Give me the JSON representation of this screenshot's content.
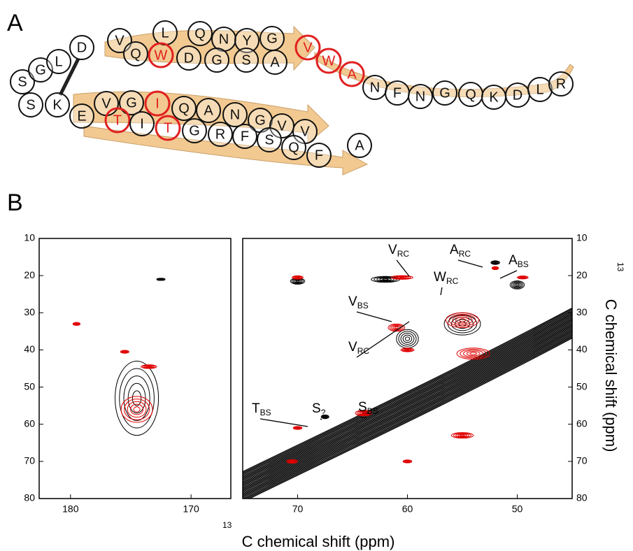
{
  "panel_a": {
    "label": "A",
    "residues": [
      {
        "letter": "S",
        "highlight": false
      },
      {
        "letter": "G",
        "highlight": false
      },
      {
        "letter": "L",
        "highlight": false
      },
      {
        "letter": "D",
        "highlight": false
      },
      {
        "letter": "V",
        "highlight": false
      },
      {
        "letter": "L",
        "highlight": false
      },
      {
        "letter": "Q",
        "highlight": false
      },
      {
        "letter": "N",
        "highlight": false
      },
      {
        "letter": "Y",
        "highlight": false
      },
      {
        "letter": "G",
        "highlight": false
      },
      {
        "letter": "Q",
        "highlight": false
      },
      {
        "letter": "W",
        "highlight": true
      },
      {
        "letter": "D",
        "highlight": false
      },
      {
        "letter": "G",
        "highlight": false
      },
      {
        "letter": "S",
        "highlight": false
      },
      {
        "letter": "A",
        "highlight": false
      },
      {
        "letter": "V",
        "highlight": true
      },
      {
        "letter": "W",
        "highlight": true
      },
      {
        "letter": "A",
        "highlight": true
      },
      {
        "letter": "N",
        "highlight": false
      },
      {
        "letter": "F",
        "highlight": false
      },
      {
        "letter": "N",
        "highlight": false
      },
      {
        "letter": "G",
        "highlight": false
      },
      {
        "letter": "Q",
        "highlight": false
      },
      {
        "letter": "K",
        "highlight": false
      },
      {
        "letter": "D",
        "highlight": false
      },
      {
        "letter": "L",
        "highlight": false
      },
      {
        "letter": "R",
        "highlight": false
      },
      {
        "letter": "S",
        "highlight": false
      },
      {
        "letter": "K",
        "highlight": false
      },
      {
        "letter": "E",
        "highlight": false
      },
      {
        "letter": "V",
        "highlight": false
      },
      {
        "letter": "G",
        "highlight": false
      },
      {
        "letter": "I",
        "highlight": true
      },
      {
        "letter": "Q",
        "highlight": false
      },
      {
        "letter": "A",
        "highlight": false
      },
      {
        "letter": "N",
        "highlight": false
      },
      {
        "letter": "G",
        "highlight": false
      },
      {
        "letter": "V",
        "highlight": false
      },
      {
        "letter": "V",
        "highlight": false
      },
      {
        "letter": "A",
        "highlight": false
      },
      {
        "letter": "T",
        "highlight": true
      },
      {
        "letter": "I",
        "highlight": false
      },
      {
        "letter": "T",
        "highlight": true
      },
      {
        "letter": "G",
        "highlight": false
      },
      {
        "letter": "R",
        "highlight": false
      },
      {
        "letter": "F",
        "highlight": false
      },
      {
        "letter": "S",
        "highlight": false
      },
      {
        "letter": "Q",
        "highlight": false
      },
      {
        "letter": "F",
        "highlight": false
      }
    ]
  },
  "panel_b": {
    "label": "B",
    "axis_label_sup": "13",
    "axis_label": "C chemical shift (ppm)",
    "left_plot": {
      "xlim": [
        182.6,
        166.7
      ],
      "xticks": [
        180,
        170
      ],
      "ylim": [
        10,
        80
      ],
      "yticks": [
        10,
        20,
        30,
        40,
        50,
        60,
        70,
        80
      ],
      "peaks": [
        {
          "x": 174.5,
          "y": 53,
          "wx": 3.6,
          "wy": 20,
          "color": "#000000"
        },
        {
          "x": 174.5,
          "y": 56,
          "wx": 2.6,
          "wy": 7,
          "color": "#e00000"
        },
        {
          "x": 179.5,
          "y": 33,
          "wx": 0.6,
          "wy": 0.8,
          "color": "#e00000"
        },
        {
          "x": 175.5,
          "y": 40.5,
          "wx": 0.7,
          "wy": 0.8,
          "color": "#e00000"
        },
        {
          "x": 173.5,
          "y": 44.5,
          "wx": 1.3,
          "wy": 1,
          "color": "#e00000"
        },
        {
          "x": 172.5,
          "y": 21,
          "wx": 0.7,
          "wy": 0.6,
          "color": "#000000"
        }
      ]
    },
    "right_plot": {
      "xlim": [
        75,
        45
      ],
      "xticks": [
        70,
        60,
        50
      ],
      "ylim": [
        10,
        80
      ],
      "yticks": [
        10,
        20,
        30,
        40,
        50,
        60,
        70,
        80
      ],
      "peaks": [
        {
          "x": 70,
          "y": 21.5,
          "wx": 1.3,
          "wy": 1.6,
          "color": "#000000"
        },
        {
          "x": 70,
          "y": 20.5,
          "wx": 1,
          "wy": 0.9,
          "color": "#e00000"
        },
        {
          "x": 62,
          "y": 21,
          "wx": 2.6,
          "wy": 1.6,
          "color": "#000000"
        },
        {
          "x": 60.5,
          "y": 20.5,
          "wx": 2,
          "wy": 1,
          "color": "#e00000"
        },
        {
          "x": 52,
          "y": 16.5,
          "wx": 0.8,
          "wy": 1,
          "color": "#000000"
        },
        {
          "x": 52,
          "y": 18,
          "wx": 0.6,
          "wy": 0.8,
          "color": "#e00000"
        },
        {
          "x": 50,
          "y": 22.5,
          "wx": 1.3,
          "wy": 2.2,
          "color": "#000000"
        },
        {
          "x": 49.5,
          "y": 20.5,
          "wx": 1,
          "wy": 0.8,
          "color": "#e00000"
        },
        {
          "x": 55,
          "y": 33,
          "wx": 3.3,
          "wy": 6,
          "color": "#000000"
        },
        {
          "x": 55,
          "y": 32,
          "wx": 3,
          "wy": 4,
          "color": "#e00000"
        },
        {
          "x": 54,
          "y": 41,
          "wx": 3,
          "wy": 3,
          "color": "#e00000"
        },
        {
          "x": 60,
          "y": 37,
          "wx": 2,
          "wy": 5,
          "color": "#000000"
        },
        {
          "x": 61,
          "y": 34,
          "wx": 1.5,
          "wy": 2,
          "color": "#e00000"
        },
        {
          "x": 60,
          "y": 40,
          "wx": 1.2,
          "wy": 1,
          "color": "#e00000"
        },
        {
          "x": 70.5,
          "y": 70,
          "wx": 1,
          "wy": 1,
          "color": "#e00000"
        },
        {
          "x": 60,
          "y": 70,
          "wx": 0.8,
          "wy": 0.8,
          "color": "#e00000"
        },
        {
          "x": 67.5,
          "y": 58,
          "wx": 0.7,
          "wy": 1,
          "color": "#000000"
        },
        {
          "x": 70,
          "y": 61,
          "wx": 0.8,
          "wy": 0.8,
          "color": "#e00000"
        },
        {
          "x": 64,
          "y": 57,
          "wx": 1.5,
          "wy": 1.5,
          "color": "#e00000"
        },
        {
          "x": 55,
          "y": 63,
          "wx": 2,
          "wy": 1.5,
          "color": "#e00000"
        }
      ]
    },
    "annotations": [
      {
        "label": "V",
        "sub": "RC"
      },
      {
        "label": "A",
        "sub": "RC"
      },
      {
        "label": "A",
        "sub": "BS"
      },
      {
        "label": "W",
        "sub": "RC"
      },
      {
        "label": "V",
        "sub": "BS"
      },
      {
        "label": "V",
        "sub": "RC"
      },
      {
        "label": "S",
        "sub": "?"
      },
      {
        "label": "S",
        "sub": "BS"
      },
      {
        "label": "T",
        "sub": "BS"
      }
    ]
  }
}
